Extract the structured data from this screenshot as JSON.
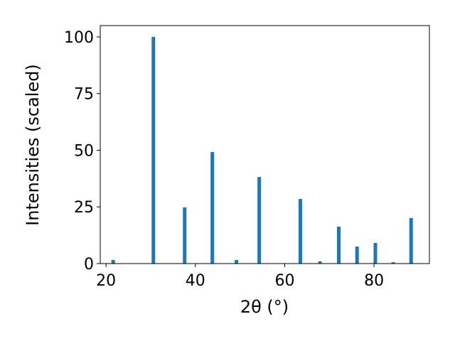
{
  "chart_data": {
    "type": "bar",
    "x": [
      21.6,
      30.6,
      37.6,
      43.8,
      49.2,
      54.3,
      63.5,
      67.9,
      72.1,
      76.2,
      80.3,
      84.3,
      88.3
    ],
    "values": [
      1.6,
      100,
      24.8,
      49.2,
      1.6,
      38.2,
      28.5,
      1.0,
      16.3,
      7.5,
      9.1,
      0.6,
      20.1
    ],
    "color": "#1f77b4",
    "xlabel": "2θ (°)",
    "ylabel": "Intensities (scaled)",
    "xlim": [
      18.7,
      92.4
    ],
    "xticks": [
      20,
      40,
      60,
      80
    ],
    "ylim": [
      0,
      105
    ],
    "yticks": [
      0,
      25,
      50,
      75,
      100
    ],
    "grid": false
  }
}
